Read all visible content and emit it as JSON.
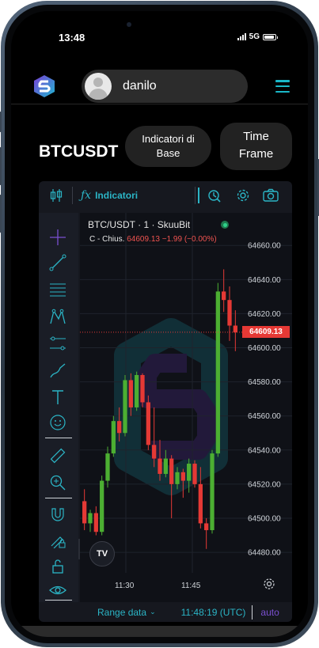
{
  "status": {
    "time": "13:48",
    "network": "5G",
    "battery_level": 0.9
  },
  "header": {
    "username": "danilo",
    "logo_icon": "skuu-logo-icon",
    "menu_icon": "hamburger-icon"
  },
  "symbol": "BTCUSDT",
  "buttons": {
    "indicators_line1": "Indicatori di",
    "indicators_line2": "Base",
    "timeframe_line1": "Time",
    "timeframe_line2": "Frame"
  },
  "toolbar": {
    "indicators_label": "Indicatori"
  },
  "legend": {
    "title": "BTC/USDT · 1 · SkuuBit",
    "series_label": "C - Chius.",
    "value": "64609.13",
    "change": "−1.99 (−0.00%)"
  },
  "bottom": {
    "range_label": "Range data",
    "clock": "11:48:19 (UTC)",
    "auto_label": "auto"
  },
  "colors": {
    "accent": "#2bb5c6",
    "up": "#4caf32",
    "down": "#e53935",
    "price_tag": "#e53935"
  },
  "chart_data": {
    "type": "candlestick",
    "y_axis": {
      "ticks": [
        "64660.00",
        "64640.00",
        "64620.00",
        "64600.00",
        "64580.00",
        "64560.00",
        "64540.00",
        "64520.00",
        "64500.00",
        "64480.00"
      ],
      "range": [
        64474,
        64668
      ]
    },
    "x_axis": {
      "ticks": [
        "11:30",
        "11:45"
      ]
    },
    "last_price": "64609.13",
    "candles": [
      {
        "o": 64510,
        "h": 64517,
        "l": 64493,
        "c": 64497,
        "d": "down"
      },
      {
        "o": 64497,
        "h": 64505,
        "l": 64492,
        "c": 64503,
        "d": "up"
      },
      {
        "o": 64503,
        "h": 64507,
        "l": 64490,
        "c": 64492,
        "d": "down"
      },
      {
        "o": 64492,
        "h": 64525,
        "l": 64490,
        "c": 64522,
        "d": "up"
      },
      {
        "o": 64522,
        "h": 64542,
        "l": 64518,
        "c": 64538,
        "d": "up"
      },
      {
        "o": 64538,
        "h": 64560,
        "l": 64536,
        "c": 64557,
        "d": "up"
      },
      {
        "o": 64557,
        "h": 64565,
        "l": 64545,
        "c": 64550,
        "d": "down"
      },
      {
        "o": 64550,
        "h": 64584,
        "l": 64548,
        "c": 64581,
        "d": "up"
      },
      {
        "o": 64581,
        "h": 64585,
        "l": 64560,
        "c": 64565,
        "d": "down"
      },
      {
        "o": 64565,
        "h": 64586,
        "l": 64563,
        "c": 64584,
        "d": "up"
      },
      {
        "o": 64584,
        "h": 64585,
        "l": 64565,
        "c": 64568,
        "d": "down"
      },
      {
        "o": 64568,
        "h": 64572,
        "l": 64540,
        "c": 64543,
        "d": "down"
      },
      {
        "o": 64543,
        "h": 64565,
        "l": 64530,
        "c": 64535,
        "d": "down"
      },
      {
        "o": 64535,
        "h": 64546,
        "l": 64522,
        "c": 64526,
        "d": "down"
      },
      {
        "o": 64526,
        "h": 64540,
        "l": 64524,
        "c": 64535,
        "d": "up"
      },
      {
        "o": 64535,
        "h": 64537,
        "l": 64500,
        "c": 64520,
        "d": "down"
      },
      {
        "o": 64520,
        "h": 64530,
        "l": 64517,
        "c": 64527,
        "d": "up"
      },
      {
        "o": 64527,
        "h": 64529,
        "l": 64512,
        "c": 64522,
        "d": "down"
      },
      {
        "o": 64522,
        "h": 64535,
        "l": 64515,
        "c": 64532,
        "d": "up"
      },
      {
        "o": 64532,
        "h": 64534,
        "l": 64518,
        "c": 64520,
        "d": "down"
      },
      {
        "o": 64520,
        "h": 64530,
        "l": 64494,
        "c": 64497,
        "d": "down"
      },
      {
        "o": 64497,
        "h": 64500,
        "l": 64482,
        "c": 64493,
        "d": "down"
      },
      {
        "o": 64493,
        "h": 64540,
        "l": 64491,
        "c": 64538,
        "d": "up"
      },
      {
        "o": 64538,
        "h": 64638,
        "l": 64536,
        "c": 64633,
        "d": "up"
      },
      {
        "o": 64633,
        "h": 64646,
        "l": 64621,
        "c": 64628,
        "d": "down"
      },
      {
        "o": 64628,
        "h": 64636,
        "l": 64604,
        "c": 64613,
        "d": "down"
      },
      {
        "o": 64613,
        "h": 64622,
        "l": 64598,
        "c": 64609,
        "d": "down"
      }
    ]
  }
}
